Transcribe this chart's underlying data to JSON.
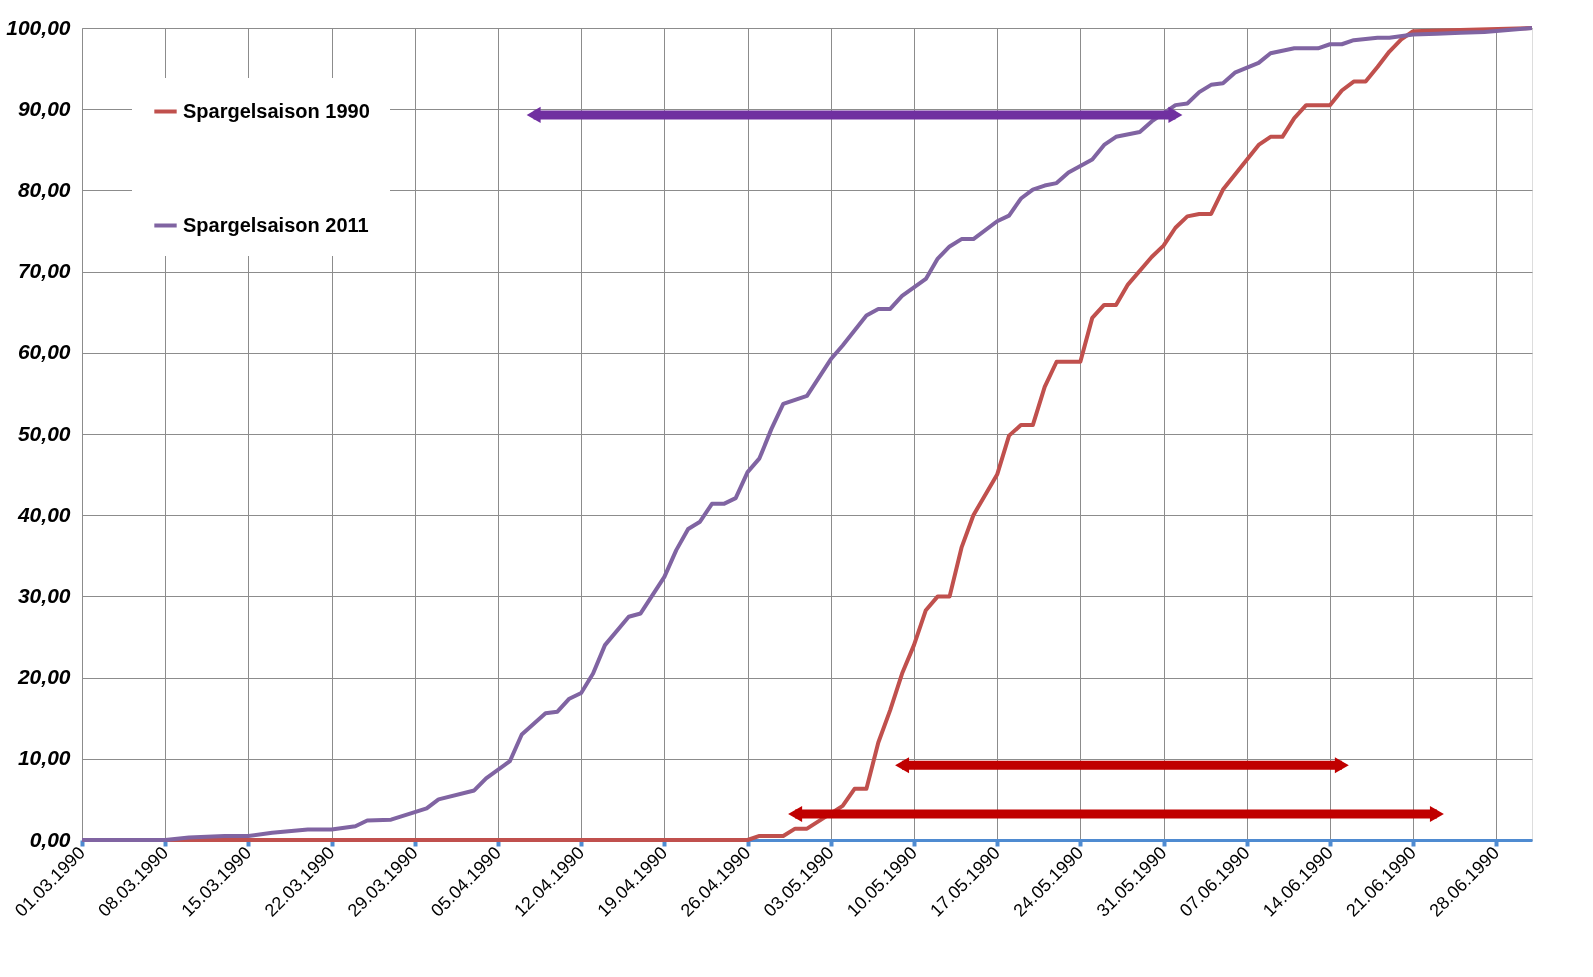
{
  "chart_data": {
    "type": "line",
    "xlim": [
      "1990-03-01",
      "1990-07-01"
    ],
    "xticks": [
      {
        "value": "1990-03-01",
        "label": "01.03.1990"
      },
      {
        "value": "1990-03-08",
        "label": "08.03.1990"
      },
      {
        "value": "1990-03-15",
        "label": "15.03.1990"
      },
      {
        "value": "1990-03-22",
        "label": "22.03.1990"
      },
      {
        "value": "1990-03-29",
        "label": "29.03.1990"
      },
      {
        "value": "1990-04-05",
        "label": "05.04.1990"
      },
      {
        "value": "1990-04-12",
        "label": "12.04.1990"
      },
      {
        "value": "1990-04-19",
        "label": "19.04.1990"
      },
      {
        "value": "1990-04-26",
        "label": "26.04.1990"
      },
      {
        "value": "1990-05-03",
        "label": "03.05.1990"
      },
      {
        "value": "1990-05-10",
        "label": "10.05.1990"
      },
      {
        "value": "1990-05-17",
        "label": "17.05.1990"
      },
      {
        "value": "1990-05-24",
        "label": "24.05.1990"
      },
      {
        "value": "1990-05-31",
        "label": "31.05.1990"
      },
      {
        "value": "1990-06-07",
        "label": "07.06.1990"
      },
      {
        "value": "1990-06-14",
        "label": "14.06.1990"
      },
      {
        "value": "1990-06-21",
        "label": "21.06.1990"
      },
      {
        "value": "1990-06-28",
        "label": "28.06.1990"
      }
    ],
    "ylim": [
      0,
      100
    ],
    "yticks": [
      {
        "value": 0,
        "label": "0,00"
      },
      {
        "value": 10,
        "label": "10,00"
      },
      {
        "value": 20,
        "label": "20,00"
      },
      {
        "value": 30,
        "label": "30,00"
      },
      {
        "value": 40,
        "label": "40,00"
      },
      {
        "value": 50,
        "label": "50,00"
      },
      {
        "value": 60,
        "label": "60,00"
      },
      {
        "value": 70,
        "label": "70,00"
      },
      {
        "value": 80,
        "label": "80,00"
      },
      {
        "value": 90,
        "label": "90,00"
      },
      {
        "value": 100,
        "label": "100,00"
      }
    ],
    "grid": true,
    "legend": "top left",
    "marker": "none",
    "line_style": "solid",
    "series": [
      {
        "name": "Spargelsaison 1990",
        "color": "#c0504d",
        "x": [
          "1990-03-01",
          "1990-04-26",
          "1990-04-27",
          "1990-04-29",
          "1990-04-30",
          "1990-05-01",
          "1990-05-04",
          "1990-05-05",
          "1990-05-06",
          "1990-05-07",
          "1990-05-08",
          "1990-05-09",
          "1990-05-10",
          "1990-05-11",
          "1990-05-12",
          "1990-05-13",
          "1990-05-14",
          "1990-05-15",
          "1990-05-17",
          "1990-05-18",
          "1990-05-19",
          "1990-05-20",
          "1990-05-21",
          "1990-05-22",
          "1990-05-24",
          "1990-05-25",
          "1990-05-26",
          "1990-05-27",
          "1990-05-28",
          "1990-05-30",
          "1990-05-31",
          "1990-06-01",
          "1990-06-02",
          "1990-06-03",
          "1990-06-04",
          "1990-06-05",
          "1990-06-08",
          "1990-06-09",
          "1990-06-10",
          "1990-06-11",
          "1990-06-12",
          "1990-06-14",
          "1990-06-15",
          "1990-06-16",
          "1990-06-17",
          "1990-06-18",
          "1990-06-19",
          "1990-06-20",
          "1990-06-21",
          "1990-07-01"
        ],
        "values": [
          0,
          0,
          0.5,
          0.5,
          1.4,
          1.4,
          4.2,
          6.3,
          6.3,
          12.0,
          16.0,
          20.5,
          24.0,
          28.3,
          30.0,
          30.0,
          36.0,
          40.0,
          45.0,
          49.8,
          51.1,
          51.1,
          55.8,
          58.9,
          58.9,
          64.3,
          65.9,
          65.9,
          68.4,
          71.8,
          73.2,
          75.4,
          76.8,
          77.1,
          77.1,
          80.1,
          85.6,
          86.6,
          86.6,
          88.9,
          90.5,
          90.5,
          92.3,
          93.4,
          93.4,
          95.2,
          97.1,
          98.6,
          99.6,
          100
        ]
      },
      {
        "name": "Spargelsaison 2011",
        "color": "#8064a2",
        "x": [
          "1990-03-01",
          "1990-03-08",
          "1990-03-10",
          "1990-03-13",
          "1990-03-15",
          "1990-03-17",
          "1990-03-20",
          "1990-03-22",
          "1990-03-24",
          "1990-03-25",
          "1990-03-27",
          "1990-03-30",
          "1990-03-31",
          "1990-04-03",
          "1990-04-04",
          "1990-04-06",
          "1990-04-07",
          "1990-04-09",
          "1990-04-10",
          "1990-04-11",
          "1990-04-12",
          "1990-04-13",
          "1990-04-14",
          "1990-04-16",
          "1990-04-17",
          "1990-04-19",
          "1990-04-20",
          "1990-04-21",
          "1990-04-22",
          "1990-04-23",
          "1990-04-24",
          "1990-04-25",
          "1990-04-26",
          "1990-04-27",
          "1990-04-28",
          "1990-04-29",
          "1990-04-30",
          "1990-05-01",
          "1990-05-03",
          "1990-05-04",
          "1990-05-06",
          "1990-05-07",
          "1990-05-08",
          "1990-05-09",
          "1990-05-11",
          "1990-05-12",
          "1990-05-13",
          "1990-05-14",
          "1990-05-15",
          "1990-05-17",
          "1990-05-18",
          "1990-05-19",
          "1990-05-20",
          "1990-05-21",
          "1990-05-22",
          "1990-05-23",
          "1990-05-24",
          "1990-05-25",
          "1990-05-26",
          "1990-05-27",
          "1990-05-29",
          "1990-05-30",
          "1990-06-01",
          "1990-06-02",
          "1990-06-03",
          "1990-06-04",
          "1990-06-05",
          "1990-06-06",
          "1990-06-08",
          "1990-06-09",
          "1990-06-11",
          "1990-06-13",
          "1990-06-14",
          "1990-06-15",
          "1990-06-16",
          "1990-06-18",
          "1990-06-19",
          "1990-06-21",
          "1990-06-23",
          "1990-06-25",
          "1990-06-27",
          "1990-07-01"
        ],
        "values": [
          0,
          0,
          0.3,
          0.5,
          0.5,
          0.9,
          1.3,
          1.3,
          1.7,
          2.4,
          2.5,
          3.9,
          5.0,
          6.1,
          7.6,
          9.7,
          13.0,
          15.6,
          15.8,
          17.4,
          18.1,
          20.5,
          24.0,
          27.5,
          27.9,
          32.4,
          35.7,
          38.3,
          39.2,
          41.4,
          41.4,
          42.1,
          45.3,
          47.0,
          50.6,
          53.7,
          54.2,
          54.7,
          59.2,
          60.9,
          64.6,
          65.4,
          65.4,
          67.0,
          69.1,
          71.6,
          73.1,
          74.0,
          74.0,
          76.2,
          76.9,
          79.0,
          80.1,
          80.6,
          80.9,
          82.2,
          83.0,
          83.8,
          85.6,
          86.6,
          87.2,
          88.5,
          90.5,
          90.7,
          92.1,
          93.0,
          93.2,
          94.5,
          95.7,
          96.9,
          97.5,
          97.5,
          98.0,
          98.0,
          98.5,
          98.8,
          98.8,
          99.2,
          99.3,
          99.4,
          99.5,
          100
        ]
      },
      {
        "type": "line",
        "marker": "triangle",
        "color": "#7030a0",
        "x": [
          "1990-04-08",
          "1990-06-01"
        ],
        "values": [
          89.3,
          89.3
        ]
      },
      {
        "type": "line",
        "marker": "triangle",
        "color": "#c00000",
        "x": [
          "1990-05-09",
          "1990-06-15"
        ],
        "values": [
          9.2,
          9.2
        ]
      },
      {
        "type": "line",
        "marker": "triangle",
        "color": "#c00000",
        "x": [
          "1990-04-30",
          "1990-06-23"
        ],
        "values": [
          3.2,
          3.2
        ]
      }
    ]
  }
}
